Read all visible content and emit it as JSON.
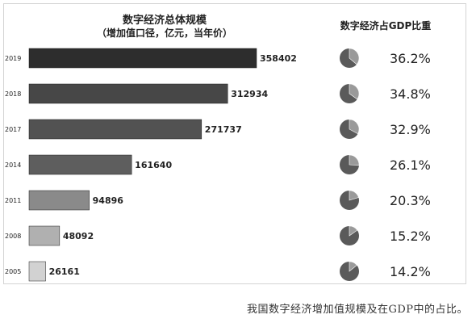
{
  "titles": {
    "bar_title": "数字经济总体规模",
    "bar_subtitle": "（增加值口径，亿元，当年价）",
    "pie_title": "数字经济占GDP比重"
  },
  "caption": "我国数字经济增加值规模及在GDP中的占比。",
  "chart_data": [
    {
      "type": "bar",
      "orientation": "horizontal",
      "title": "数字经济总体规模",
      "subtitle": "（增加值口径，亿元，当年价）",
      "categories": [
        "2019",
        "2018",
        "2017",
        "2014",
        "2011",
        "2008",
        "2005"
      ],
      "values": [
        358402,
        312934,
        271737,
        161640,
        94896,
        48092,
        26161
      ],
      "value_labels": [
        "358402",
        "312934",
        "271737",
        "161640",
        "94896",
        "48092",
        "26161"
      ],
      "colors": [
        "#2d2d2d",
        "#474747",
        "#525252",
        "#5e5e5e",
        "#8a8a8a",
        "#b0b0b0",
        "#d2d2d2"
      ],
      "xlim": [
        0,
        358402
      ],
      "grid": false
    },
    {
      "type": "pie",
      "title": "数字经济占GDP比重",
      "categories": [
        "2019",
        "2018",
        "2017",
        "2014",
        "2011",
        "2008",
        "2005"
      ],
      "values": [
        36.2,
        34.8,
        32.9,
        26.1,
        20.3,
        15.2,
        14.2
      ],
      "labels": [
        "36.2%",
        "34.8%",
        "32.9%",
        "26.1%",
        "20.3%",
        "15.2%",
        "14.2%"
      ],
      "slice_color": "#9a9a9a",
      "rest_color": "#5a5a5a"
    }
  ]
}
